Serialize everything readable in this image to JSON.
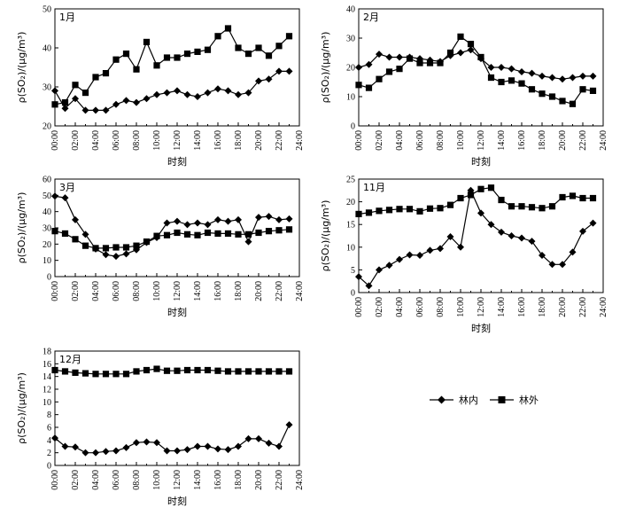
{
  "legend": {
    "inside_label": "林内",
    "outside_label": "林外"
  },
  "chart_data": [
    {
      "type": "line",
      "panel_label": "1月",
      "xlabel": "时刻",
      "ylabel": "ρ(SO₂)/(μg/m³)",
      "x_ticks": [
        "00:00",
        "02:00",
        "04:00",
        "06:00",
        "08:00",
        "10:00",
        "12:00",
        "14:00",
        "16:00",
        "18:00",
        "20:00",
        "22:00",
        "24:00"
      ],
      "ylim": [
        20,
        50
      ],
      "y_ticks": [
        20,
        30,
        40,
        50
      ],
      "series": [
        {
          "name": "林内",
          "marker": "diamond",
          "values": [
            29,
            24.5,
            27,
            24,
            24,
            24,
            25.5,
            26.5,
            26,
            27,
            28,
            28.5,
            29,
            28,
            27.5,
            28.5,
            29.5,
            29,
            28,
            28.5,
            31.5,
            32,
            34,
            34
          ]
        },
        {
          "name": "林外",
          "marker": "square",
          "values": [
            25.5,
            26,
            30.5,
            28.5,
            32.5,
            33.5,
            37,
            38.5,
            34.5,
            41.5,
            35.5,
            37.5,
            37.5,
            38.5,
            39,
            39.5,
            43,
            45,
            40,
            38.5,
            40,
            38,
            40.5,
            43
          ]
        }
      ]
    },
    {
      "type": "line",
      "panel_label": "2月",
      "xlabel": "时刻",
      "ylabel": "ρ(SO₂)/(μg/m³)",
      "x_ticks": [
        "00:00",
        "02:00",
        "04:00",
        "06:00",
        "08:00",
        "10:00",
        "12:00",
        "14:00",
        "16:00",
        "18:00",
        "20:00",
        "22:00",
        "24:00"
      ],
      "ylim": [
        0,
        40
      ],
      "y_ticks": [
        0,
        10,
        20,
        30,
        40
      ],
      "series": [
        {
          "name": "林内",
          "marker": "diamond",
          "values": [
            20,
            21,
            24.5,
            23.5,
            23.5,
            23.5,
            23,
            22.5,
            22,
            24,
            25,
            26,
            23,
            20,
            20,
            19.5,
            18.5,
            18,
            17,
            16.5,
            16,
            16.5,
            17,
            17
          ]
        },
        {
          "name": "林外",
          "marker": "square",
          "values": [
            14,
            13,
            16,
            18.5,
            19.5,
            23,
            21.5,
            21.5,
            21.5,
            25,
            30.5,
            28,
            23.5,
            16.5,
            15,
            15.5,
            14.5,
            12.5,
            11,
            10,
            8.5,
            7.5,
            12.5,
            12
          ]
        }
      ]
    },
    {
      "type": "line",
      "panel_label": "3月",
      "xlabel": "时刻",
      "ylabel": "ρ(SO₂)/(μg/m³)",
      "x_ticks": [
        "00:00",
        "02:00",
        "04:00",
        "06:00",
        "08:00",
        "10:00",
        "12:00",
        "14:00",
        "16:00",
        "18:00",
        "20:00",
        "22:00",
        "24:00"
      ],
      "ylim": [
        0,
        60
      ],
      "y_ticks": [
        0,
        10,
        20,
        30,
        40,
        50,
        60
      ],
      "series": [
        {
          "name": "林内",
          "marker": "diamond",
          "values": [
            49.5,
            48.5,
            35,
            26,
            17,
            13.5,
            12.5,
            14,
            16.5,
            21,
            24,
            33,
            34,
            32,
            33,
            32,
            35,
            34,
            35,
            21.5,
            36.5,
            37,
            35,
            35.5
          ]
        },
        {
          "name": "林外",
          "marker": "square",
          "values": [
            28,
            26.5,
            23,
            19,
            17.5,
            17.5,
            18,
            18,
            19,
            21.5,
            25,
            25.5,
            27,
            26,
            25.5,
            27,
            26.5,
            26.5,
            26,
            26,
            27,
            28,
            28.5,
            29
          ]
        }
      ]
    },
    {
      "type": "line",
      "panel_label": "11月",
      "xlabel": "时刻",
      "ylabel": "ρ(SO₂)/(μg/m³)",
      "x_ticks": [
        "00:00",
        "02:00",
        "04:00",
        "06:00",
        "08:00",
        "10:00",
        "12:00",
        "14:00",
        "16:00",
        "18:00",
        "20:00",
        "22:00",
        "24:00"
      ],
      "ylim": [
        0,
        25
      ],
      "y_ticks": [
        0,
        5,
        10,
        15,
        20,
        25
      ],
      "series": [
        {
          "name": "林内",
          "marker": "diamond",
          "values": [
            3.5,
            1.5,
            5,
            6,
            7.3,
            8.3,
            8.2,
            9.3,
            9.7,
            12.3,
            10,
            22.5,
            17.5,
            15,
            13.3,
            12.5,
            12,
            11.3,
            8.2,
            6.2,
            6.2,
            8.9,
            13.5,
            15.3
          ]
        },
        {
          "name": "林外",
          "marker": "square",
          "values": [
            17.3,
            17.6,
            18,
            18.2,
            18.4,
            18.4,
            17.9,
            18.5,
            18.6,
            19.3,
            20.8,
            21.5,
            22.8,
            23.1,
            20.4,
            19,
            19,
            18.8,
            18.6,
            19,
            21,
            21.3,
            20.8,
            20.8
          ]
        }
      ]
    },
    {
      "type": "line",
      "panel_label": "12月",
      "xlabel": "时刻",
      "ylabel": "ρ(SO₂)/(μg/m³)",
      "x_ticks": [
        "00:00",
        "02:00",
        "04:00",
        "06:00",
        "08:00",
        "10:00",
        "12:00",
        "14:00",
        "16:00",
        "18:00",
        "20:00",
        "22:00",
        "24:00"
      ],
      "ylim": [
        0,
        18
      ],
      "y_ticks": [
        0,
        2,
        4,
        6,
        8,
        10,
        12,
        14,
        16,
        18
      ],
      "series": [
        {
          "name": "林内",
          "marker": "diamond",
          "values": [
            4.3,
            3,
            2.9,
            2,
            2,
            2.2,
            2.3,
            2.8,
            3.6,
            3.7,
            3.6,
            2.3,
            2.3,
            2.5,
            3,
            3,
            2.6,
            2.5,
            3,
            4.2,
            4.2,
            3.5,
            3,
            6.4
          ]
        },
        {
          "name": "林外",
          "marker": "square",
          "values": [
            15,
            14.8,
            14.6,
            14.5,
            14.4,
            14.4,
            14.4,
            14.4,
            14.8,
            15,
            15.2,
            14.9,
            14.9,
            15,
            15,
            15,
            14.9,
            14.8,
            14.8,
            14.8,
            14.8,
            14.8,
            14.8,
            14.8
          ]
        }
      ]
    }
  ]
}
